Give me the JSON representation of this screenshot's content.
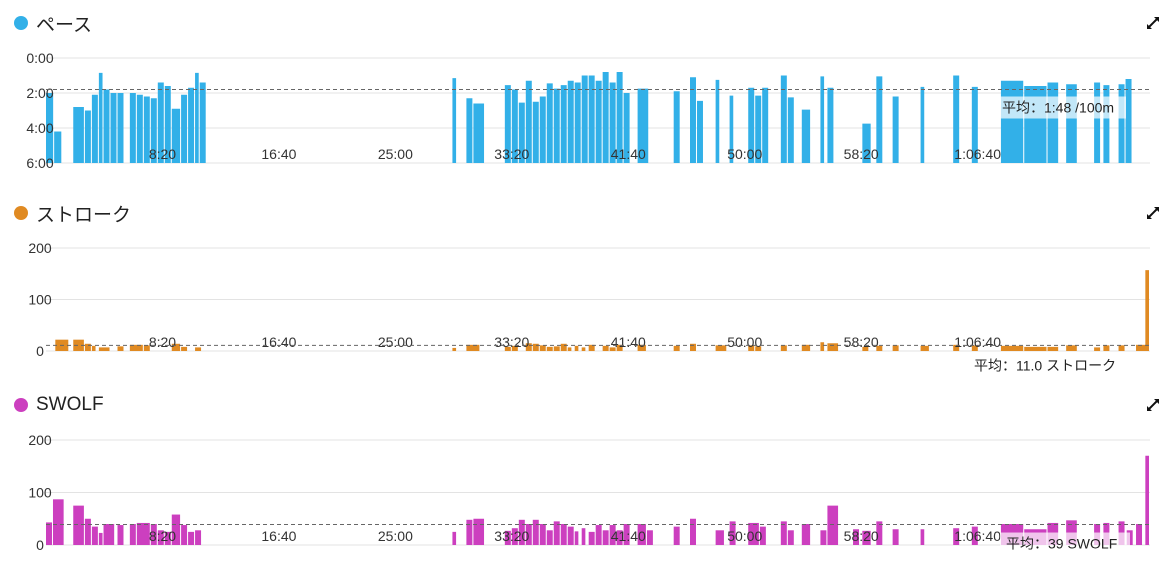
{
  "chart_data": [
    {
      "id": "pace",
      "type": "bar",
      "title": "ペース",
      "color": "#32b0e8",
      "icon": "expand-icon",
      "xlim": [
        0,
        4740
      ],
      "ylim": [
        6,
        0
      ],
      "y_inverted": true,
      "y_ticks": [
        "0:00",
        "2:00",
        "4:00",
        "6:00"
      ],
      "y_tick_values": [
        0,
        2,
        4,
        6
      ],
      "x_ticks": [
        "8:20",
        "16:40",
        "25:00",
        "33:20",
        "41:40",
        "50:00",
        "58:20",
        "1:06:40"
      ],
      "x_tick_values": [
        500,
        1000,
        1500,
        2000,
        2500,
        3000,
        3500,
        4000
      ],
      "average": {
        "value": 1.8,
        "label": "平均：1:48 /100m"
      },
      "bars": [
        {
          "x": 0,
          "w": 35,
          "y": 2.0
        },
        {
          "x": 35,
          "w": 35,
          "y": 4.2
        },
        {
          "x": 117,
          "w": 50,
          "y": 2.8
        },
        {
          "x": 167,
          "w": 30,
          "y": 3.0
        },
        {
          "x": 197,
          "w": 30,
          "y": 2.1
        },
        {
          "x": 227,
          "w": 20,
          "y": 0.85
        },
        {
          "x": 247,
          "w": 30,
          "y": 1.8
        },
        {
          "x": 277,
          "w": 30,
          "y": 2.0
        },
        {
          "x": 307,
          "w": 30,
          "y": 2.0
        },
        {
          "x": 360,
          "w": 30,
          "y": 2.0
        },
        {
          "x": 390,
          "w": 30,
          "y": 2.1
        },
        {
          "x": 420,
          "w": 30,
          "y": 2.2
        },
        {
          "x": 450,
          "w": 30,
          "y": 2.3
        },
        {
          "x": 480,
          "w": 30,
          "y": 1.4
        },
        {
          "x": 510,
          "w": 30,
          "y": 1.6
        },
        {
          "x": 540,
          "w": 40,
          "y": 2.9
        },
        {
          "x": 580,
          "w": 30,
          "y": 2.1
        },
        {
          "x": 610,
          "w": 30,
          "y": 1.7
        },
        {
          "x": 640,
          "w": 20,
          "y": 0.85
        },
        {
          "x": 660,
          "w": 30,
          "y": 1.4
        },
        {
          "x": 1745,
          "w": 20,
          "y": 1.15
        },
        {
          "x": 1805,
          "w": 30,
          "y": 2.3
        },
        {
          "x": 1835,
          "w": 30,
          "y": 2.6
        },
        {
          "x": 1855,
          "w": 30,
          "y": 2.6
        },
        {
          "x": 1970,
          "w": 30,
          "y": 1.55
        },
        {
          "x": 2000,
          "w": 30,
          "y": 1.8
        },
        {
          "x": 2030,
          "w": 30,
          "y": 2.55
        },
        {
          "x": 2060,
          "w": 30,
          "y": 1.3
        },
        {
          "x": 2090,
          "w": 30,
          "y": 2.5
        },
        {
          "x": 2120,
          "w": 30,
          "y": 2.2
        },
        {
          "x": 2150,
          "w": 30,
          "y": 1.45
        },
        {
          "x": 2180,
          "w": 30,
          "y": 1.75
        },
        {
          "x": 2210,
          "w": 30,
          "y": 1.55
        },
        {
          "x": 2240,
          "w": 30,
          "y": 1.3
        },
        {
          "x": 2270,
          "w": 30,
          "y": 1.4
        },
        {
          "x": 2300,
          "w": 30,
          "y": 1.0
        },
        {
          "x": 2330,
          "w": 30,
          "y": 1.0
        },
        {
          "x": 2360,
          "w": 30,
          "y": 1.3
        },
        {
          "x": 2390,
          "w": 30,
          "y": 0.8
        },
        {
          "x": 2420,
          "w": 30,
          "y": 1.4
        },
        {
          "x": 2450,
          "w": 30,
          "y": 0.8
        },
        {
          "x": 2480,
          "w": 30,
          "y": 2.0
        },
        {
          "x": 2540,
          "w": 50,
          "y": 1.75
        },
        {
          "x": 2695,
          "w": 30,
          "y": 1.9
        },
        {
          "x": 2765,
          "w": 30,
          "y": 1.1
        },
        {
          "x": 2795,
          "w": 30,
          "y": 2.45
        },
        {
          "x": 2875,
          "w": 20,
          "y": 1.25
        },
        {
          "x": 2935,
          "w": 20,
          "y": 2.15
        },
        {
          "x": 3015,
          "w": 30,
          "y": 1.7
        },
        {
          "x": 3045,
          "w": 30,
          "y": 2.15
        },
        {
          "x": 3075,
          "w": 30,
          "y": 1.7
        },
        {
          "x": 3155,
          "w": 30,
          "y": 1.0
        },
        {
          "x": 3185,
          "w": 30,
          "y": 2.25
        },
        {
          "x": 3245,
          "w": 40,
          "y": 2.95
        },
        {
          "x": 3325,
          "w": 20,
          "y": 1.05
        },
        {
          "x": 3355,
          "w": 30,
          "y": 1.7
        },
        {
          "x": 3505,
          "w": 40,
          "y": 3.75
        },
        {
          "x": 3565,
          "w": 30,
          "y": 1.05
        },
        {
          "x": 3635,
          "w": 30,
          "y": 2.2
        },
        {
          "x": 3755,
          "w": 20,
          "y": 1.65
        },
        {
          "x": 3895,
          "w": 30,
          "y": 1.0
        },
        {
          "x": 3975,
          "w": 30,
          "y": 1.65
        },
        {
          "x": 4100,
          "w": 100,
          "y": 1.3
        },
        {
          "x": 4200,
          "w": 100,
          "y": 1.6
        },
        {
          "x": 4300,
          "w": 50,
          "y": 1.4
        },
        {
          "x": 4380,
          "w": 50,
          "y": 1.5
        },
        {
          "x": 4500,
          "w": 30,
          "y": 1.4
        },
        {
          "x": 4540,
          "w": 30,
          "y": 1.55
        },
        {
          "x": 4605,
          "w": 30,
          "y": 1.5
        },
        {
          "x": 4635,
          "w": 30,
          "y": 1.2
        }
      ]
    },
    {
      "id": "stroke",
      "type": "bar",
      "title": "ストローク",
      "color": "#e08a22",
      "icon": "expand-icon",
      "xlim": [
        0,
        4740
      ],
      "ylim": [
        0,
        200
      ],
      "y_ticks": [
        "200",
        "100",
        "0"
      ],
      "y_tick_values": [
        200,
        100,
        0
      ],
      "x_ticks": [
        "8:20",
        "16:40",
        "25:00",
        "33:20",
        "41:40",
        "50:00",
        "58:20",
        "1:06:40"
      ],
      "x_tick_values": [
        500,
        1000,
        1500,
        2000,
        2500,
        3000,
        3500,
        4000
      ],
      "average": {
        "value": 11,
        "label": "平均：11.0 ストローク"
      },
      "bars": [
        {
          "x": 40,
          "w": 60,
          "y": 22
        },
        {
          "x": 117,
          "w": 50,
          "y": 22
        },
        {
          "x": 167,
          "w": 30,
          "y": 14
        },
        {
          "x": 197,
          "w": 20,
          "y": 10
        },
        {
          "x": 227,
          "w": 50,
          "y": 7
        },
        {
          "x": 307,
          "w": 30,
          "y": 9
        },
        {
          "x": 360,
          "w": 60,
          "y": 12
        },
        {
          "x": 420,
          "w": 30,
          "y": 11
        },
        {
          "x": 540,
          "w": 40,
          "y": 14
        },
        {
          "x": 580,
          "w": 30,
          "y": 8
        },
        {
          "x": 640,
          "w": 30,
          "y": 7
        },
        {
          "x": 1745,
          "w": 20,
          "y": 6
        },
        {
          "x": 1805,
          "w": 60,
          "y": 12
        },
        {
          "x": 1970,
          "w": 30,
          "y": 8
        },
        {
          "x": 2000,
          "w": 30,
          "y": 10
        },
        {
          "x": 2060,
          "w": 30,
          "y": 15
        },
        {
          "x": 2090,
          "w": 30,
          "y": 14
        },
        {
          "x": 2120,
          "w": 30,
          "y": 11
        },
        {
          "x": 2150,
          "w": 30,
          "y": 8
        },
        {
          "x": 2180,
          "w": 30,
          "y": 9
        },
        {
          "x": 2210,
          "w": 30,
          "y": 14
        },
        {
          "x": 2240,
          "w": 20,
          "y": 7
        },
        {
          "x": 2270,
          "w": 20,
          "y": 10
        },
        {
          "x": 2300,
          "w": 20,
          "y": 7
        },
        {
          "x": 2330,
          "w": 30,
          "y": 12
        },
        {
          "x": 2390,
          "w": 30,
          "y": 10
        },
        {
          "x": 2420,
          "w": 30,
          "y": 7
        },
        {
          "x": 2450,
          "w": 30,
          "y": 12
        },
        {
          "x": 2540,
          "w": 40,
          "y": 12
        },
        {
          "x": 2695,
          "w": 30,
          "y": 10
        },
        {
          "x": 2765,
          "w": 30,
          "y": 14
        },
        {
          "x": 2875,
          "w": 50,
          "y": 11
        },
        {
          "x": 3015,
          "w": 30,
          "y": 11
        },
        {
          "x": 3045,
          "w": 30,
          "y": 9
        },
        {
          "x": 3155,
          "w": 30,
          "y": 11
        },
        {
          "x": 3245,
          "w": 40,
          "y": 12
        },
        {
          "x": 3325,
          "w": 20,
          "y": 17
        },
        {
          "x": 3355,
          "w": 50,
          "y": 15
        },
        {
          "x": 3505,
          "w": 30,
          "y": 8
        },
        {
          "x": 3565,
          "w": 30,
          "y": 10
        },
        {
          "x": 3635,
          "w": 30,
          "y": 11
        },
        {
          "x": 3755,
          "w": 40,
          "y": 10
        },
        {
          "x": 3895,
          "w": 30,
          "y": 12
        },
        {
          "x": 3975,
          "w": 30,
          "y": 11
        },
        {
          "x": 4100,
          "w": 100,
          "y": 10
        },
        {
          "x": 4200,
          "w": 100,
          "y": 8
        },
        {
          "x": 4300,
          "w": 50,
          "y": 8
        },
        {
          "x": 4380,
          "w": 50,
          "y": 11
        },
        {
          "x": 4500,
          "w": 30,
          "y": 7
        },
        {
          "x": 4540,
          "w": 30,
          "y": 11
        },
        {
          "x": 4605,
          "w": 30,
          "y": 11
        },
        {
          "x": 4680,
          "w": 50,
          "y": 12
        },
        {
          "x": 4720,
          "w": 20,
          "y": 157
        }
      ]
    },
    {
      "id": "swolf",
      "type": "bar",
      "title": "SWOLF",
      "color": "#cc3fbf",
      "icon": "expand-icon",
      "xlim": [
        0,
        4740
      ],
      "ylim": [
        0,
        200
      ],
      "y_ticks": [
        "200",
        "100",
        "0"
      ],
      "y_tick_values": [
        200,
        100,
        0
      ],
      "x_ticks": [
        "8:20",
        "16:40",
        "25:00",
        "33:20",
        "41:40",
        "50:00",
        "58:20",
        "1:06:40"
      ],
      "x_tick_values": [
        500,
        1000,
        1500,
        2000,
        2500,
        3000,
        3500,
        4000
      ],
      "average": {
        "value": 39,
        "label": "平均：39 SWOLF"
      },
      "bars": [
        {
          "x": 0,
          "w": 30,
          "y": 43
        },
        {
          "x": 30,
          "w": 50,
          "y": 87
        },
        {
          "x": 117,
          "w": 50,
          "y": 75
        },
        {
          "x": 167,
          "w": 30,
          "y": 50
        },
        {
          "x": 197,
          "w": 30,
          "y": 35
        },
        {
          "x": 227,
          "w": 20,
          "y": 23
        },
        {
          "x": 247,
          "w": 50,
          "y": 40
        },
        {
          "x": 307,
          "w": 30,
          "y": 38
        },
        {
          "x": 360,
          "w": 30,
          "y": 40
        },
        {
          "x": 390,
          "w": 60,
          "y": 42
        },
        {
          "x": 450,
          "w": 30,
          "y": 40
        },
        {
          "x": 480,
          "w": 30,
          "y": 28
        },
        {
          "x": 510,
          "w": 30,
          "y": 25
        },
        {
          "x": 540,
          "w": 40,
          "y": 58
        },
        {
          "x": 580,
          "w": 30,
          "y": 38
        },
        {
          "x": 610,
          "w": 30,
          "y": 25
        },
        {
          "x": 640,
          "w": 30,
          "y": 28
        },
        {
          "x": 1745,
          "w": 20,
          "y": 25
        },
        {
          "x": 1805,
          "w": 30,
          "y": 48
        },
        {
          "x": 1835,
          "w": 50,
          "y": 50
        },
        {
          "x": 1970,
          "w": 30,
          "y": 27
        },
        {
          "x": 2000,
          "w": 30,
          "y": 32
        },
        {
          "x": 2030,
          "w": 30,
          "y": 48
        },
        {
          "x": 2060,
          "w": 30,
          "y": 40
        },
        {
          "x": 2090,
          "w": 30,
          "y": 48
        },
        {
          "x": 2120,
          "w": 30,
          "y": 40
        },
        {
          "x": 2150,
          "w": 30,
          "y": 28
        },
        {
          "x": 2180,
          "w": 30,
          "y": 45
        },
        {
          "x": 2210,
          "w": 30,
          "y": 40
        },
        {
          "x": 2240,
          "w": 30,
          "y": 35
        },
        {
          "x": 2270,
          "w": 20,
          "y": 26
        },
        {
          "x": 2300,
          "w": 20,
          "y": 32
        },
        {
          "x": 2330,
          "w": 30,
          "y": 25
        },
        {
          "x": 2360,
          "w": 30,
          "y": 38
        },
        {
          "x": 2390,
          "w": 30,
          "y": 28
        },
        {
          "x": 2420,
          "w": 30,
          "y": 38
        },
        {
          "x": 2450,
          "w": 30,
          "y": 28
        },
        {
          "x": 2480,
          "w": 30,
          "y": 40
        },
        {
          "x": 2540,
          "w": 40,
          "y": 40
        },
        {
          "x": 2580,
          "w": 30,
          "y": 28
        },
        {
          "x": 2695,
          "w": 30,
          "y": 35
        },
        {
          "x": 2765,
          "w": 30,
          "y": 50
        },
        {
          "x": 2875,
          "w": 40,
          "y": 28
        },
        {
          "x": 2935,
          "w": 30,
          "y": 45
        },
        {
          "x": 3015,
          "w": 50,
          "y": 42
        },
        {
          "x": 3065,
          "w": 30,
          "y": 35
        },
        {
          "x": 3155,
          "w": 30,
          "y": 45
        },
        {
          "x": 3185,
          "w": 30,
          "y": 28
        },
        {
          "x": 3245,
          "w": 40,
          "y": 40
        },
        {
          "x": 3325,
          "w": 30,
          "y": 28
        },
        {
          "x": 3355,
          "w": 50,
          "y": 75
        },
        {
          "x": 3465,
          "w": 30,
          "y": 30
        },
        {
          "x": 3505,
          "w": 40,
          "y": 27
        },
        {
          "x": 3565,
          "w": 30,
          "y": 45
        },
        {
          "x": 3635,
          "w": 30,
          "y": 30
        },
        {
          "x": 3755,
          "w": 20,
          "y": 30
        },
        {
          "x": 3895,
          "w": 30,
          "y": 32
        },
        {
          "x": 3975,
          "w": 30,
          "y": 35
        },
        {
          "x": 4100,
          "w": 100,
          "y": 40
        },
        {
          "x": 4200,
          "w": 100,
          "y": 30
        },
        {
          "x": 4300,
          "w": 50,
          "y": 42
        },
        {
          "x": 4380,
          "w": 50,
          "y": 47
        },
        {
          "x": 4500,
          "w": 30,
          "y": 40
        },
        {
          "x": 4540,
          "w": 30,
          "y": 42
        },
        {
          "x": 4605,
          "w": 30,
          "y": 45
        },
        {
          "x": 4640,
          "w": 30,
          "y": 28
        },
        {
          "x": 4680,
          "w": 30,
          "y": 40
        },
        {
          "x": 4720,
          "w": 20,
          "y": 170
        }
      ]
    }
  ]
}
